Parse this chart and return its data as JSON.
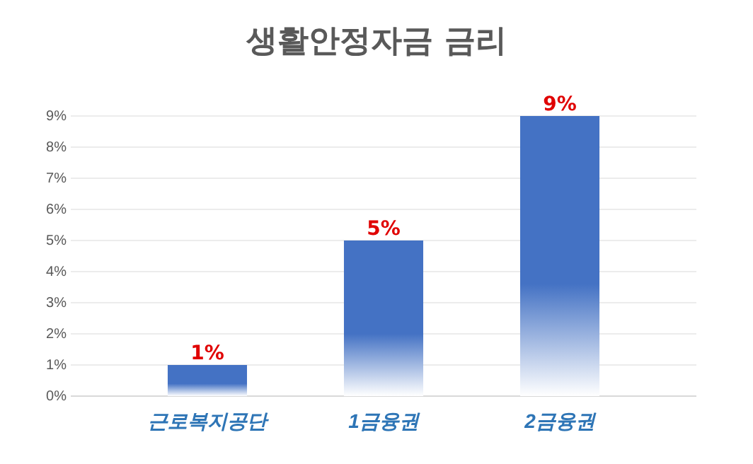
{
  "chart_data": {
    "type": "bar",
    "title": "생활안정자금 금리",
    "categories": [
      "근로복지공단",
      "1금융권",
      "2금융권"
    ],
    "values": [
      1,
      5,
      9
    ],
    "color": "#4472c4",
    "value_labels": [
      "1%",
      "5%",
      "9%"
    ],
    "ylim": [
      0,
      9
    ],
    "yticks": [
      {
        "value": 0,
        "label": "0%"
      },
      {
        "value": 1,
        "label": "1%"
      },
      {
        "value": 2,
        "label": "2%"
      },
      {
        "value": 3,
        "label": "3%"
      },
      {
        "value": 4,
        "label": "4%"
      },
      {
        "value": 5,
        "label": "5%"
      },
      {
        "value": 6,
        "label": "6%"
      },
      {
        "value": 7,
        "label": "7%"
      },
      {
        "value": 8,
        "label": "8%"
      },
      {
        "value": 9,
        "label": "9%"
      }
    ],
    "grid": "y"
  }
}
